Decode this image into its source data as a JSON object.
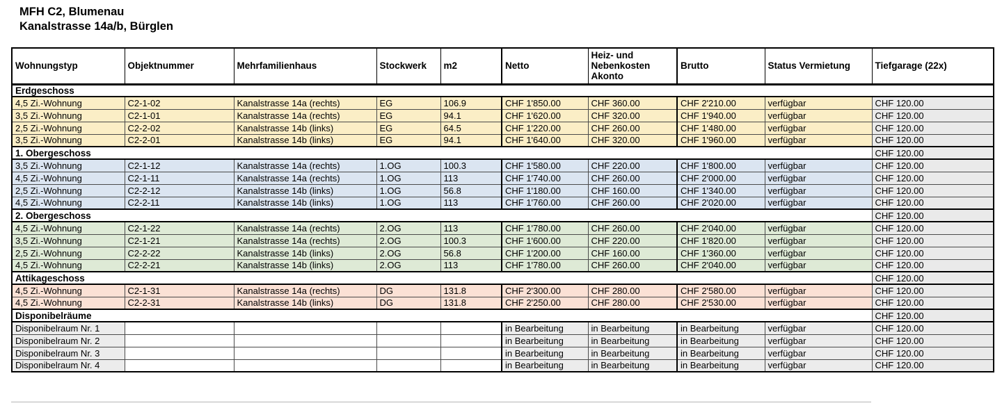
{
  "title": {
    "line1": "MFH C2, Blumenau",
    "line2": "Kanalstrasse 14a/b, Bürglen"
  },
  "colors": {
    "erdgeschoss_row": "#FBEEC6",
    "og1_row": "#DBE5F1",
    "og2_row": "#DEEAD6",
    "attika_row": "#FBE1D5",
    "dispo_row": "#ECECEC",
    "garage_gray": "#EAEAEA",
    "section_bg": "#FFFFFF"
  },
  "table": {
    "columns": [
      {
        "key": "wohnungstyp",
        "label": "Wohnungstyp"
      },
      {
        "key": "objektnummer",
        "label": "Objektnummer"
      },
      {
        "key": "mehrfamilienhaus",
        "label": "Mehrfamilienhaus"
      },
      {
        "key": "stockwerk",
        "label": "Stockwerk"
      },
      {
        "key": "m2",
        "label": "m2"
      },
      {
        "key": "netto",
        "label": "Netto"
      },
      {
        "key": "akonto",
        "label": "Heiz- und\nNebenkosten\nAkonto"
      },
      {
        "key": "brutto",
        "label": "Brutto"
      },
      {
        "key": "status",
        "label": "Status Vermietung"
      },
      {
        "key": "tiefgarage",
        "label": "Tiefgarage (22x)"
      }
    ],
    "sections": [
      {
        "label": "Erdgeschoss",
        "tiefgarage": null,
        "row_color": "#FBEEC6",
        "rows": [
          {
            "wohnungstyp": "4,5 Zi.-Wohnung",
            "objektnummer": "C2-1-02",
            "mehrfamilienhaus": "Kanalstrasse 14a (rechts)",
            "stockwerk": "EG",
            "m2": "106.9",
            "netto": "CHF 1'850.00",
            "akonto": "CHF 360.00",
            "brutto": "CHF 2'210.00",
            "status": "verfügbar",
            "tiefgarage": "CHF 120.00"
          },
          {
            "wohnungstyp": "3,5 Zi.-Wohnung",
            "objektnummer": "C2-1-01",
            "mehrfamilienhaus": "Kanalstrasse 14a (rechts)",
            "stockwerk": "EG",
            "m2": "94.1",
            "netto": "CHF 1'620.00",
            "akonto": "CHF 320.00",
            "brutto": "CHF 1'940.00",
            "status": "verfügbar",
            "tiefgarage": "CHF 120.00"
          },
          {
            "wohnungstyp": "2,5 Zi.-Wohnung",
            "objektnummer": "C2-2-02",
            "mehrfamilienhaus": "Kanalstrasse 14b (links)",
            "stockwerk": "EG",
            "m2": "64.5",
            "netto": "CHF 1'220.00",
            "akonto": "CHF 260.00",
            "brutto": "CHF 1'480.00",
            "status": "verfügbar",
            "tiefgarage": "CHF 120.00"
          },
          {
            "wohnungstyp": "3,5 Zi.-Wohnung",
            "objektnummer": "C2-2-01",
            "mehrfamilienhaus": "Kanalstrasse 14b (links)",
            "stockwerk": "EG",
            "m2": "94.1",
            "netto": "CHF 1'640.00",
            "akonto": "CHF 320.00",
            "brutto": "CHF 1'960.00",
            "status": "verfügbar",
            "tiefgarage": "CHF 120.00"
          }
        ]
      },
      {
        "label": "1. Obergeschoss",
        "tiefgarage": "CHF 120.00",
        "row_color": "#DBE5F1",
        "rows": [
          {
            "wohnungstyp": "3,5 Zi.-Wohnung",
            "objektnummer": "C2-1-12",
            "mehrfamilienhaus": "Kanalstrasse 14a (rechts)",
            "stockwerk": "1.OG",
            "m2": "100.3",
            "netto": "CHF 1'580.00",
            "akonto": "CHF 220.00",
            "brutto": "CHF 1'800.00",
            "status": "verfügbar",
            "tiefgarage": "CHF 120.00"
          },
          {
            "wohnungstyp": "4,5 Zi.-Wohnung",
            "objektnummer": "C2-1-11",
            "mehrfamilienhaus": "Kanalstrasse 14a (rechts)",
            "stockwerk": "1.OG",
            "m2": "113",
            "netto": "CHF 1'740.00",
            "akonto": "CHF 260.00",
            "brutto": "CHF 2'000.00",
            "status": "verfügbar",
            "tiefgarage": "CHF 120.00"
          },
          {
            "wohnungstyp": "2,5 Zi.-Wohnung",
            "objektnummer": "C2-2-12",
            "mehrfamilienhaus": "Kanalstrasse 14b (links)",
            "stockwerk": "1.OG",
            "m2": "56.8",
            "netto": "CHF 1'180.00",
            "akonto": "CHF 160.00",
            "brutto": "CHF 1'340.00",
            "status": "verfügbar",
            "tiefgarage": "CHF 120.00"
          },
          {
            "wohnungstyp": "4,5 Zi.-Wohnung",
            "objektnummer": "C2-2-11",
            "mehrfamilienhaus": "Kanalstrasse 14b (links)",
            "stockwerk": "1.OG",
            "m2": "113",
            "netto": "CHF 1'760.00",
            "akonto": "CHF 260.00",
            "brutto": "CHF 2'020.00",
            "status": "verfügbar",
            "tiefgarage": "CHF 120.00"
          }
        ]
      },
      {
        "label": "2. Obergeschoss",
        "tiefgarage": "CHF 120.00",
        "row_color": "#DEEAD6",
        "rows": [
          {
            "wohnungstyp": "4,5 Zi.-Wohnung",
            "objektnummer": "C2-1-22",
            "mehrfamilienhaus": "Kanalstrasse 14a (rechts)",
            "stockwerk": "2.OG",
            "m2": "113",
            "netto": "CHF 1'780.00",
            "akonto": "CHF 260.00",
            "brutto": "CHF 2'040.00",
            "status": "verfügbar",
            "tiefgarage": "CHF 120.00"
          },
          {
            "wohnungstyp": "3,5 Zi.-Wohnung",
            "objektnummer": "C2-1-21",
            "mehrfamilienhaus": "Kanalstrasse 14a (rechts)",
            "stockwerk": "2.OG",
            "m2": "100.3",
            "netto": "CHF 1'600.00",
            "akonto": "CHF 220.00",
            "brutto": "CHF 1'820.00",
            "status": "verfügbar",
            "tiefgarage": "CHF 120.00"
          },
          {
            "wohnungstyp": "2,5 Zi.-Wohnung",
            "objektnummer": "C2-2-22",
            "mehrfamilienhaus": "Kanalstrasse 14b (links)",
            "stockwerk": "2.OG",
            "m2": "56.8",
            "netto": "CHF 1'200.00",
            "akonto": "CHF 160.00",
            "brutto": "CHF 1'360.00",
            "status": "verfügbar",
            "tiefgarage": "CHF 120.00"
          },
          {
            "wohnungstyp": "4,5 Zi.-Wohnung",
            "objektnummer": "C2-2-21",
            "mehrfamilienhaus": "Kanalstrasse 14b (links)",
            "stockwerk": "2.OG",
            "m2": "113",
            "netto": "CHF 1'780.00",
            "akonto": "CHF 260.00",
            "brutto": "CHF 2'040.00",
            "status": "verfügbar",
            "tiefgarage": "CHF 120.00"
          }
        ]
      },
      {
        "label": "Attikageschoss",
        "tiefgarage": "CHF 120.00",
        "row_color": "#FBE1D5",
        "rows": [
          {
            "wohnungstyp": "4,5 Zi.-Wohnung",
            "objektnummer": "C2-1-31",
            "mehrfamilienhaus": "Kanalstrasse 14a (rechts)",
            "stockwerk": "DG",
            "m2": "131.8",
            "netto": "CHF 2'300.00",
            "akonto": "CHF 280.00",
            "brutto": "CHF 2'580.00",
            "status": "verfügbar",
            "tiefgarage": "CHF 120.00"
          },
          {
            "wohnungstyp": "4,5 Zi.-Wohnung",
            "objektnummer": "C2-2-31",
            "mehrfamilienhaus": "Kanalstrasse 14b (links)",
            "stockwerk": "DG",
            "m2": "131.8",
            "netto": "CHF 2'250.00",
            "akonto": "CHF 280.00",
            "brutto": "CHF 2'530.00",
            "status": "verfügbar",
            "tiefgarage": "CHF 120.00"
          }
        ]
      },
      {
        "label": "Disponibelräume",
        "tiefgarage": "CHF 120.00",
        "row_color": "#ECECEC",
        "empty_cell_color": "#FFFFFF",
        "rows": [
          {
            "wohnungstyp": "Disponibelraum Nr. 1",
            "objektnummer": "",
            "mehrfamilienhaus": "",
            "stockwerk": "",
            "m2": "",
            "netto": "in Bearbeitung",
            "akonto": "in Bearbeitung",
            "brutto": "in Bearbeitung",
            "status": "verfügbar",
            "tiefgarage": "CHF 120.00"
          },
          {
            "wohnungstyp": "Disponibelraum Nr. 2",
            "objektnummer": "",
            "mehrfamilienhaus": "",
            "stockwerk": "",
            "m2": "",
            "netto": "in Bearbeitung",
            "akonto": "in Bearbeitung",
            "brutto": "in Bearbeitung",
            "status": "verfügbar",
            "tiefgarage": "CHF 120.00"
          },
          {
            "wohnungstyp": "Disponibelraum Nr. 3",
            "objektnummer": "",
            "mehrfamilienhaus": "",
            "stockwerk": "",
            "m2": "",
            "netto": "in Bearbeitung",
            "akonto": "in Bearbeitung",
            "brutto": "in Bearbeitung",
            "status": "verfügbar",
            "tiefgarage": "CHF 120.00"
          },
          {
            "wohnungstyp": "Disponibelraum Nr. 4",
            "objektnummer": "",
            "mehrfamilienhaus": "",
            "stockwerk": "",
            "m2": "",
            "netto": "in Bearbeitung",
            "akonto": "in Bearbeitung",
            "brutto": "in Bearbeitung",
            "status": "verfügbar",
            "tiefgarage": "CHF 120.00"
          }
        ]
      }
    ]
  }
}
